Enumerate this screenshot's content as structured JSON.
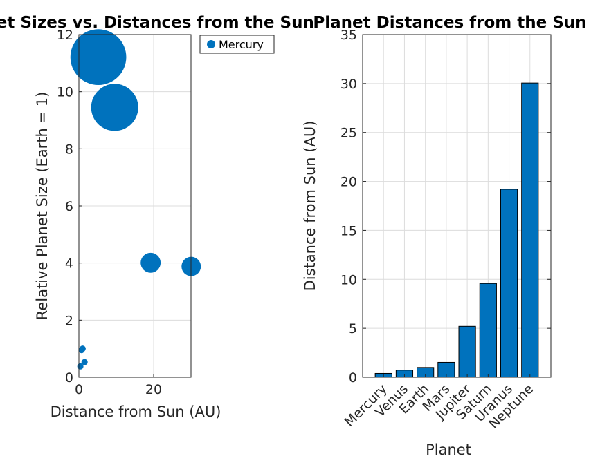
{
  "chart_data": [
    {
      "type": "scatter",
      "title": "Planet Sizes vs. Distances from the Sun",
      "xlabel": "Distance from Sun (AU)",
      "ylabel": "Relative Planet Size (Earth = 1)",
      "xlim": [
        0,
        30
      ],
      "ylim": [
        0,
        12
      ],
      "xticks": [
        0,
        20
      ],
      "yticks": [
        0,
        2,
        4,
        6,
        8,
        10,
        12
      ],
      "grid": true,
      "legend": {
        "entries": [
          "Mercury"
        ],
        "placement": "top-right, outside"
      },
      "color": "#0072BD",
      "points": [
        {
          "x": 0.39,
          "y": 0.38
        },
        {
          "x": 0.72,
          "y": 0.95
        },
        {
          "x": 1.0,
          "y": 1.0
        },
        {
          "x": 1.52,
          "y": 0.53
        },
        {
          "x": 5.2,
          "y": 11.21
        },
        {
          "x": 9.58,
          "y": 9.45
        },
        {
          "x": 19.2,
          "y": 4.01
        },
        {
          "x": 30.05,
          "y": 3.88
        }
      ]
    },
    {
      "type": "bar",
      "title": "Planet Distances from the Sun",
      "xlabel": "Planet",
      "ylabel": "Distance from Sun (AU)",
      "categories": [
        "Mercury",
        "Venus",
        "Earth",
        "Mars",
        "Jupiter",
        "Saturn",
        "Uranus",
        "Neptune"
      ],
      "values": [
        0.39,
        0.72,
        1.0,
        1.52,
        5.2,
        9.58,
        19.2,
        30.05
      ],
      "ylim": [
        0,
        35
      ],
      "yticks": [
        0,
        5,
        10,
        15,
        20,
        25,
        30,
        35
      ],
      "grid": true,
      "color": "#0072BD"
    }
  ]
}
